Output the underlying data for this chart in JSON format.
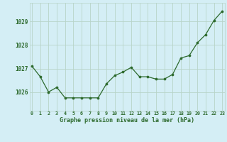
{
  "x": [
    0,
    1,
    2,
    3,
    4,
    5,
    6,
    7,
    8,
    9,
    10,
    11,
    12,
    13,
    14,
    15,
    16,
    17,
    18,
    19,
    20,
    21,
    22,
    23
  ],
  "y": [
    1027.1,
    1026.65,
    1026.0,
    1026.2,
    1025.75,
    1025.75,
    1025.75,
    1025.75,
    1025.75,
    1026.35,
    1026.7,
    1026.85,
    1027.05,
    1026.65,
    1026.65,
    1026.55,
    1026.55,
    1026.75,
    1027.45,
    1027.55,
    1028.1,
    1028.45,
    1029.05,
    1029.45
  ],
  "line_color": "#2d6a2d",
  "marker_color": "#2d6a2d",
  "bg_color": "#d4eef5",
  "grid_color": "#b8d4c8",
  "xlabel": "Graphe pression niveau de la mer (hPa)",
  "xlabel_color": "#2d6a2d",
  "tick_color": "#2d6a2d",
  "ylim_min": 1025.2,
  "ylim_max": 1029.8,
  "yticks": [
    1026,
    1027,
    1028,
    1029
  ],
  "xticks": [
    0,
    1,
    2,
    3,
    4,
    5,
    6,
    7,
    8,
    9,
    10,
    11,
    12,
    13,
    14,
    15,
    16,
    17,
    18,
    19,
    20,
    21,
    22,
    23
  ]
}
